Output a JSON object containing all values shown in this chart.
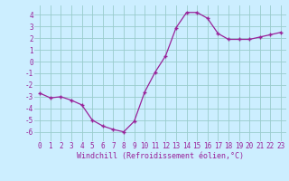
{
  "x": [
    0,
    1,
    2,
    3,
    4,
    5,
    6,
    7,
    8,
    9,
    10,
    11,
    12,
    13,
    14,
    15,
    16,
    17,
    18,
    19,
    20,
    21,
    22,
    23
  ],
  "y": [
    -2.7,
    -3.1,
    -3.0,
    -3.3,
    -3.7,
    -5.0,
    -5.5,
    -5.8,
    -6.0,
    -5.1,
    -2.6,
    -0.9,
    0.5,
    2.9,
    4.2,
    4.2,
    3.7,
    2.4,
    1.9,
    1.9,
    1.9,
    2.1,
    2.3,
    2.5
  ],
  "line_color": "#992299",
  "marker": "+",
  "bg_color": "#cceeff",
  "grid_color": "#99cccc",
  "xlabel": "Windchill (Refroidissement éolien,°C)",
  "xlabel_fontsize": 6.0,
  "tick_fontsize": 5.5,
  "ylim": [
    -6.8,
    4.8
  ],
  "yticks": [
    -6,
    -5,
    -4,
    -3,
    -2,
    -1,
    0,
    1,
    2,
    3,
    4
  ],
  "xlim": [
    -0.5,
    23.5
  ],
  "xticks": [
    0,
    1,
    2,
    3,
    4,
    5,
    6,
    7,
    8,
    9,
    10,
    11,
    12,
    13,
    14,
    15,
    16,
    17,
    18,
    19,
    20,
    21,
    22,
    23
  ]
}
